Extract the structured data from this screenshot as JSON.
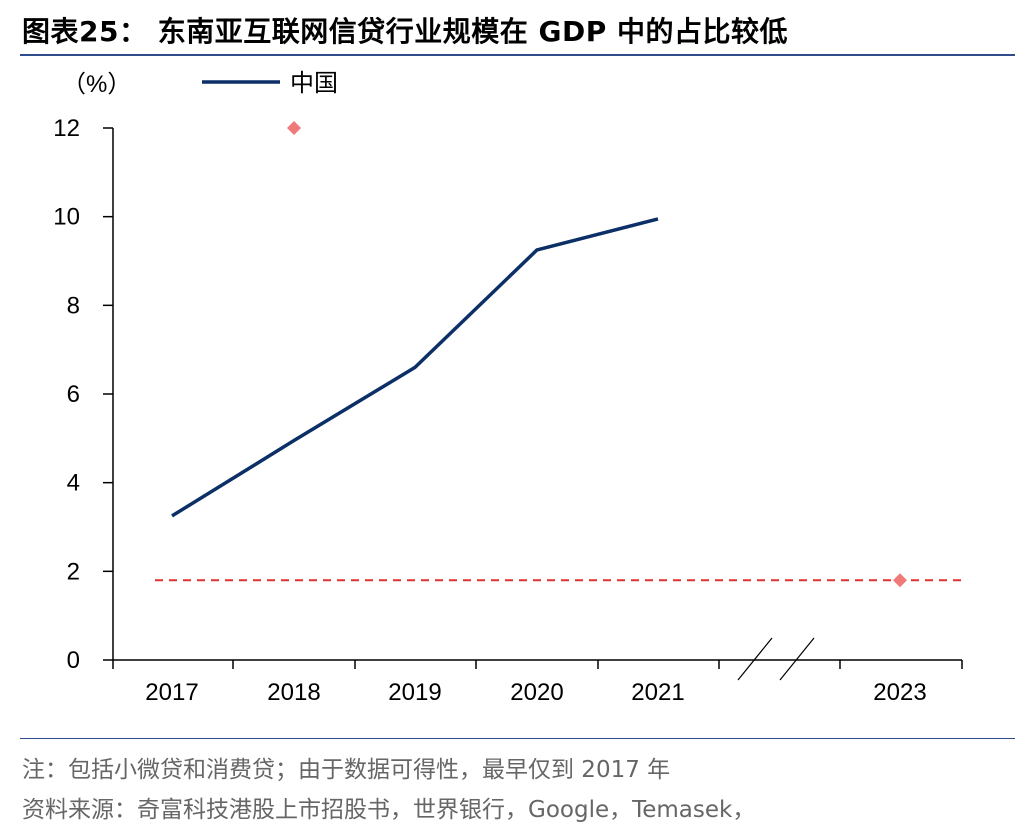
{
  "title": "图表25： 东南亚互联网信贷行业规模在 GDP 中的占比较低",
  "notes": [
    "注：包括小微贷和消费贷；由于数据可得性，最早仅到 2017 年",
    "资料来源：奇富科技港股上市招股书，世界银行，Google，Temasek，"
  ],
  "chart_data": {
    "type": "line",
    "ylabel": "（%）",
    "ylim": [
      0,
      12
    ],
    "yticks": [
      0,
      2,
      4,
      6,
      8,
      10,
      12
    ],
    "categories": [
      "2017",
      "2018",
      "2019",
      "2020",
      "2021",
      "2023"
    ],
    "axis_break_between": [
      "2021",
      "2023"
    ],
    "series": [
      {
        "name": "中国",
        "color": "#0b2f66",
        "values": [
          3.25,
          4.95,
          6.6,
          9.25,
          9.95,
          null
        ]
      }
    ],
    "unlabeled_markers": [
      {
        "category": "2018",
        "value": 12.0,
        "color": "#f07a7a",
        "shape": "diamond"
      },
      {
        "category": "2023",
        "value": 1.8,
        "color": "#f07a7a",
        "shape": "diamond"
      }
    ],
    "reference_line": {
      "value": 1.8,
      "color": "#e03030",
      "style": "dashed"
    },
    "legend_position": "top-left",
    "grid": false
  }
}
